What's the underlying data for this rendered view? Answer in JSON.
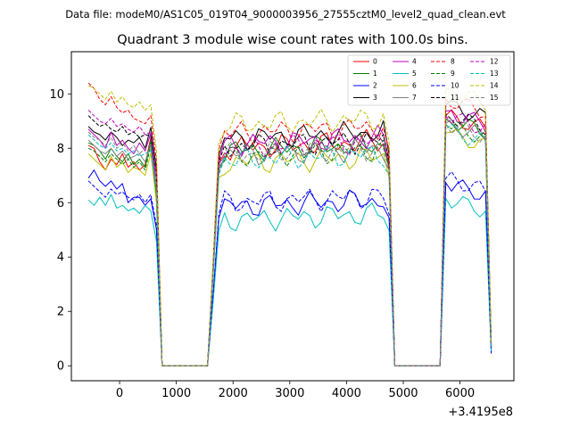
{
  "suptitle": "Data file: modeM0/AS1C05_019T04_9000003956_27555cztM0_level2_quad_clean.evt",
  "chart_data": {
    "type": "line",
    "title": "Quadrant 3 module wise count rates with 100.0s bins.",
    "xlabel": "",
    "ylabel": "",
    "offset_text": "+3.4195e8",
    "xlim": [
      -850,
      6950
    ],
    "ylim": [
      -0.55,
      11.55
    ],
    "xticks": [
      0,
      1000,
      2000,
      3000,
      4000,
      5000,
      6000
    ],
    "yticks": [
      0,
      2,
      4,
      6,
      8,
      10
    ],
    "grid": false,
    "legend_position": "top-right",
    "series": [
      {
        "name": "0",
        "color": "#ff0000",
        "style": "solid",
        "base": 8.0,
        "last": 0.7,
        "values": [
          8.1,
          8.0,
          7.5,
          7.2,
          7.6,
          7.4,
          7.8,
          7.3,
          7.5,
          7.2,
          7.4,
          7.6,
          7.3,
          6.8
        ]
      },
      {
        "name": "1",
        "color": "#008000",
        "style": "solid",
        "base": 7.9,
        "last": 0.6,
        "values": [
          8.2,
          8.1,
          7.9,
          7.6,
          8.0,
          7.7,
          7.5,
          7.8,
          7.4,
          7.6,
          7.3,
          7.5,
          7.2,
          7.0
        ]
      },
      {
        "name": "2",
        "color": "#0000ff",
        "style": "solid",
        "base": 5.85,
        "last": 0.45,
        "values": [
          6.9,
          7.2,
          6.8,
          6.6,
          6.8,
          6.5,
          6.7,
          6.0,
          6.2,
          6.2,
          5.9,
          6.0,
          6.1,
          5.9
        ]
      },
      {
        "name": "3",
        "color": "#000000",
        "style": "solid",
        "base": 8.35,
        "last": 0.8,
        "values": [
          8.8,
          8.6,
          8.5,
          8.3,
          8.6,
          8.4,
          8.1,
          8.3,
          8.2,
          8.4,
          8.0,
          8.2,
          8.0,
          8.6
        ]
      },
      {
        "name": "4",
        "color": "#bf00bf",
        "style": "solid",
        "base": 8.15,
        "last": 0.7,
        "values": [
          8.7,
          8.5,
          8.3,
          8.0,
          8.6,
          8.1,
          8.3,
          8.0,
          7.8,
          8.2,
          7.9,
          8.1,
          7.8,
          7.5
        ]
      },
      {
        "name": "5",
        "color": "#00bfbf",
        "style": "solid",
        "base": 5.35,
        "last": 0.5,
        "values": [
          6.1,
          5.9,
          6.2,
          5.9,
          6.3,
          5.8,
          5.9,
          5.7,
          5.8,
          5.6,
          5.9,
          5.7,
          5.5,
          5.4
        ]
      },
      {
        "name": "6",
        "color": "#bfbf00",
        "style": "solid",
        "base": 7.45,
        "last": 0.7,
        "values": [
          7.8,
          7.6,
          7.4,
          7.2,
          7.7,
          7.3,
          7.5,
          7.1,
          7.3,
          7.2,
          7.0,
          7.4,
          7.1,
          6.9
        ]
      },
      {
        "name": "7",
        "color": "#808080",
        "style": "solid",
        "base": 7.75,
        "last": 0.7,
        "values": [
          8.3,
          8.1,
          7.9,
          7.8,
          8.0,
          7.7,
          7.9,
          7.6,
          7.7,
          7.8,
          7.5,
          7.7,
          7.4,
          7.6
        ]
      },
      {
        "name": "8",
        "color": "#ff0000",
        "style": "dashed",
        "base": 8.55,
        "last": 0.8,
        "values": [
          10.4,
          10.2,
          9.8,
          9.6,
          9.9,
          9.5,
          9.3,
          9.4,
          9.1,
          9.0,
          8.9,
          9.2,
          8.8,
          9.0
        ]
      },
      {
        "name": "9",
        "color": "#008000",
        "style": "dashed",
        "base": 7.7,
        "last": 0.7,
        "values": [
          8.0,
          7.9,
          7.7,
          7.5,
          7.8,
          7.6,
          7.4,
          7.6,
          7.3,
          7.5,
          7.2,
          7.4,
          7.1,
          7.3
        ]
      },
      {
        "name": "10",
        "color": "#0000ff",
        "style": "dashed",
        "base": 6.0,
        "last": 0.5,
        "values": [
          6.8,
          6.6,
          6.4,
          6.2,
          6.5,
          6.3,
          6.4,
          6.2,
          6.1,
          6.3,
          6.0,
          6.2,
          6.0,
          6.1
        ]
      },
      {
        "name": "11",
        "color": "#000000",
        "style": "dashed",
        "base": 8.05,
        "last": 0.7,
        "values": [
          9.2,
          9.0,
          8.8,
          8.9,
          8.7,
          8.6,
          8.8,
          8.5,
          8.6,
          8.4,
          8.5,
          8.3,
          8.4,
          8.2
        ]
      },
      {
        "name": "12",
        "color": "#bf00bf",
        "style": "dashed",
        "base": 8.0,
        "last": 0.7,
        "values": [
          9.4,
          9.2,
          9.0,
          8.9,
          9.1,
          8.8,
          8.9,
          8.7,
          8.6,
          8.8,
          8.5,
          8.6,
          8.4,
          8.3
        ]
      },
      {
        "name": "13",
        "color": "#00bfbf",
        "style": "dashed",
        "base": 7.55,
        "last": 0.6,
        "values": [
          8.5,
          8.3,
          8.1,
          8.0,
          8.2,
          7.9,
          8.0,
          7.8,
          7.9,
          7.7,
          7.8,
          7.6,
          7.7,
          7.5
        ]
      },
      {
        "name": "14",
        "color": "#bfbf00",
        "style": "dashed",
        "base": 8.85,
        "last": 0.9,
        "values": [
          10.3,
          10.2,
          10.0,
          9.8,
          10.1,
          9.7,
          9.9,
          9.6,
          9.5,
          9.7,
          9.4,
          9.6,
          9.3,
          9.5
        ]
      },
      {
        "name": "15",
        "color": "#808080",
        "style": "dashed",
        "base": 7.75,
        "last": 0.7,
        "values": [
          8.6,
          8.4,
          8.3,
          8.1,
          8.4,
          8.0,
          8.2,
          7.9,
          8.1,
          7.8,
          8.0,
          7.7,
          7.9,
          7.6
        ]
      }
    ]
  }
}
